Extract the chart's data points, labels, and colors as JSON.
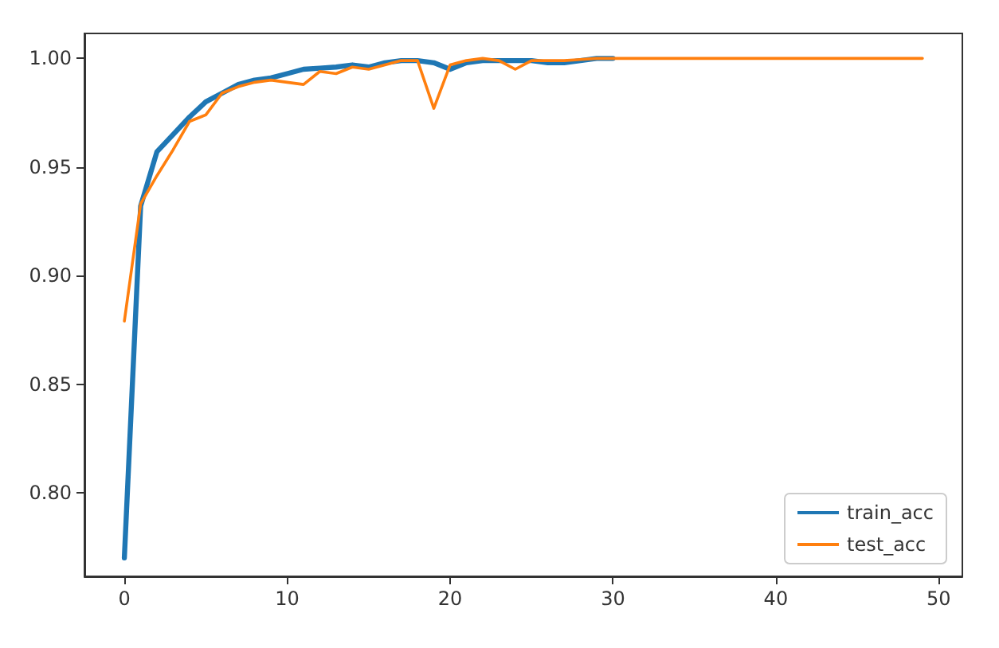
{
  "chart_data": {
    "type": "line",
    "x": [
      0,
      1,
      2,
      3,
      4,
      5,
      6,
      7,
      8,
      9,
      10,
      11,
      12,
      13,
      14,
      15,
      16,
      17,
      18,
      19,
      20,
      21,
      22,
      23,
      24,
      25,
      26,
      27,
      28,
      29,
      30,
      31,
      32,
      33,
      34,
      35,
      36,
      37,
      38,
      39,
      40,
      41,
      42,
      43,
      44,
      45,
      46,
      47,
      48,
      49
    ],
    "series": [
      {
        "name": "train_acc",
        "color": "#1f77b4",
        "values": [
          0.77,
          0.932,
          0.957,
          0.965,
          0.973,
          0.98,
          0.984,
          0.988,
          0.99,
          0.991,
          0.993,
          0.995,
          0.9955,
          0.996,
          0.997,
          0.996,
          0.998,
          0.999,
          0.999,
          0.998,
          0.995,
          0.998,
          0.999,
          0.999,
          0.999,
          0.999,
          0.998,
          0.998,
          0.999,
          1.0,
          1.0,
          null,
          null,
          null,
          null,
          null,
          null,
          null,
          null,
          null,
          null,
          null,
          null,
          null,
          null,
          null,
          null,
          null,
          null,
          null
        ]
      },
      {
        "name": "test_acc",
        "color": "#ff7f0e",
        "values": [
          0.879,
          0.933,
          0.946,
          0.958,
          0.971,
          0.974,
          0.984,
          0.987,
          0.989,
          0.99,
          0.989,
          0.988,
          0.994,
          0.993,
          0.996,
          0.995,
          0.997,
          0.999,
          0.999,
          0.977,
          0.997,
          0.999,
          1.0,
          0.999,
          0.995,
          0.999,
          0.999,
          0.999,
          0.9995,
          1.0,
          1.0,
          1.0,
          1.0,
          1.0,
          1.0,
          1.0,
          1.0,
          1.0,
          1.0,
          1.0,
          1.0,
          1.0,
          1.0,
          1.0,
          1.0,
          1.0,
          1.0,
          1.0,
          1.0,
          1.0
        ]
      }
    ],
    "xlim": [
      -2.45,
      51.45
    ],
    "xticks": [
      0,
      10,
      20,
      30,
      40,
      50
    ],
    "ylim": [
      0.7615,
      1.0115
    ],
    "yticks": [
      {
        "value": 0.8,
        "label": "0.80"
      },
      {
        "value": 0.85,
        "label": "0.85"
      },
      {
        "value": 0.9,
        "label": "0.90"
      },
      {
        "value": 0.95,
        "label": "0.95"
      },
      {
        "value": 1.0,
        "label": "1.00"
      }
    ],
    "grid": false,
    "legend": "bottom right",
    "marker": "none",
    "line_style": "solid"
  }
}
